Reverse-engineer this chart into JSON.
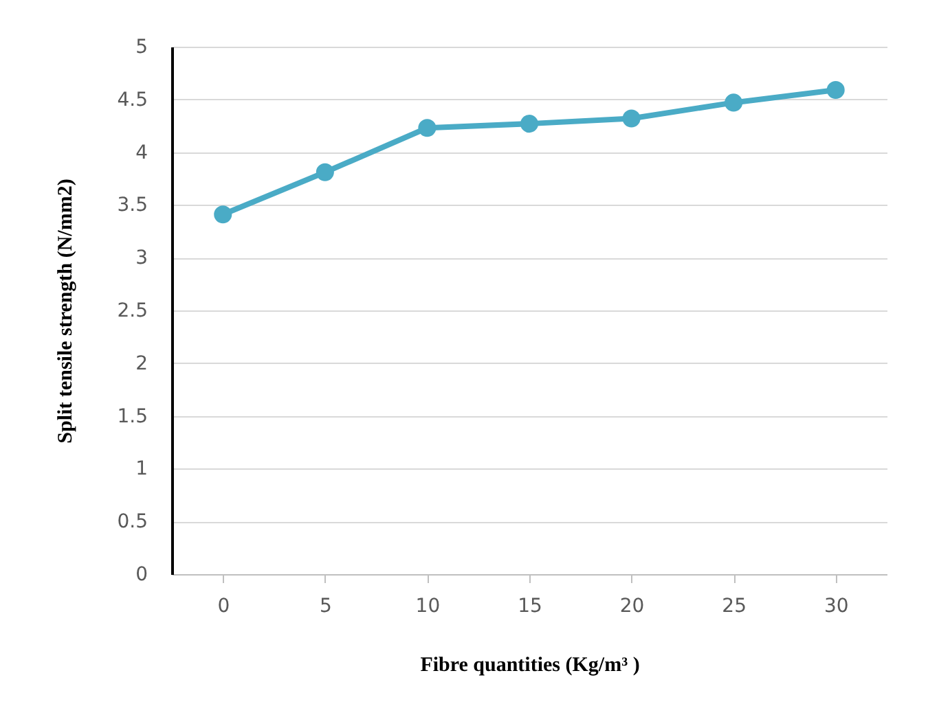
{
  "chart_data": {
    "type": "line",
    "xlabel": "Fibre quantities (Kg/m³ )",
    "ylabel": "Split tensile strength (N/mm2)",
    "categories": [
      "0",
      "5",
      "10",
      "15",
      "20",
      "25",
      "30"
    ],
    "series": [
      {
        "color": "#4aabc6",
        "values": [
          3.41,
          3.81,
          4.23,
          4.27,
          4.32,
          4.47,
          4.59
        ]
      }
    ],
    "ylim": [
      0,
      5
    ],
    "yticks": [
      0,
      0.5,
      1,
      1.5,
      2,
      2.5,
      3,
      3.5,
      4,
      4.5,
      5
    ],
    "grid": "y",
    "marker": "circle",
    "line_style": "solid"
  }
}
